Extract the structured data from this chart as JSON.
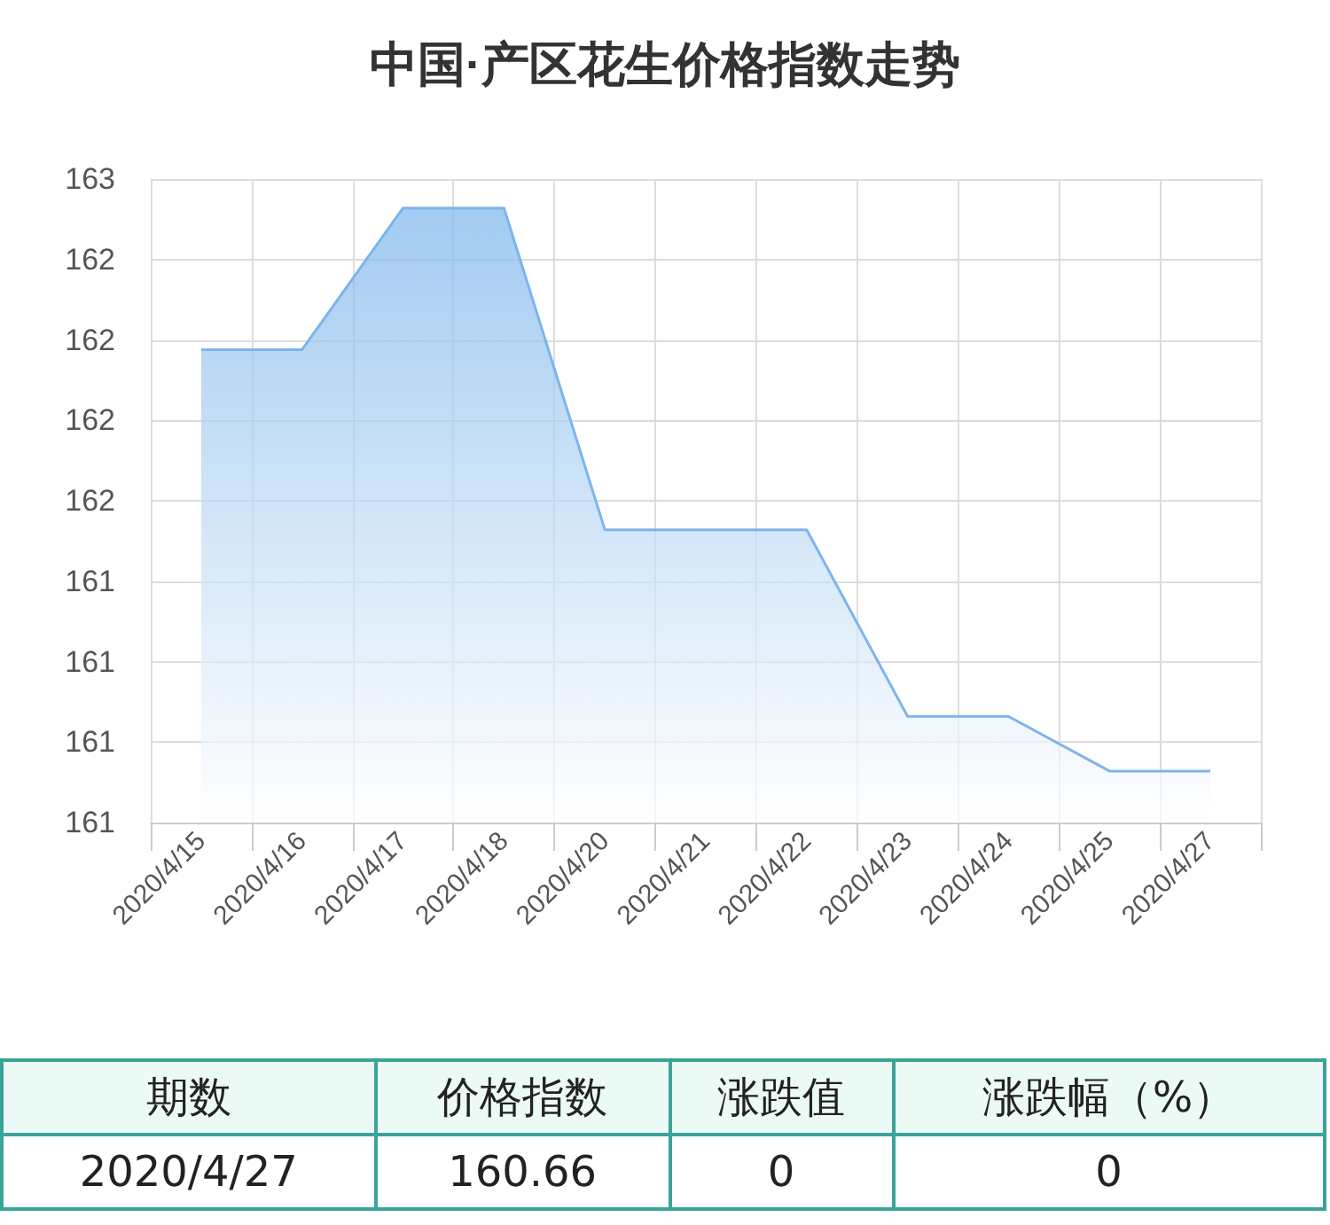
{
  "chart_data": {
    "type": "area",
    "title": "中国·产区花生价格指数走势",
    "categories": [
      "2020/4/15",
      "2020/4/16",
      "2020/4/17",
      "2020/4/18",
      "2020/4/20",
      "2020/4/21",
      "2020/4/22",
      "2020/4/23",
      "2020/4/24",
      "2020/4/25",
      "2020/4/27"
    ],
    "series": [
      {
        "color": "#7cb5ec",
        "values": [
          161.97,
          161.97,
          162.41,
          162.41,
          161.41,
          161.41,
          161.41,
          160.83,
          160.83,
          160.66,
          160.66
        ]
      }
    ],
    "ylim": [
      160.5,
      162.5
    ],
    "yticks": [
      {
        "value": 160.5,
        "label": "161"
      },
      {
        "value": 160.75,
        "label": "161"
      },
      {
        "value": 161,
        "label": "161"
      },
      {
        "value": 161.25,
        "label": "161"
      },
      {
        "value": 161.5,
        "label": "162"
      },
      {
        "value": 161.75,
        "label": "162"
      },
      {
        "value": 162,
        "label": "162"
      },
      {
        "value": 162.25,
        "label": "162"
      },
      {
        "value": 162.5,
        "label": "163"
      }
    ],
    "grid": true,
    "annotations": [
      "期数",
      "价格指数",
      "涨跌值",
      "涨跌幅（%）",
      "2020/4/27",
      "160.66",
      "0",
      "0"
    ]
  }
}
